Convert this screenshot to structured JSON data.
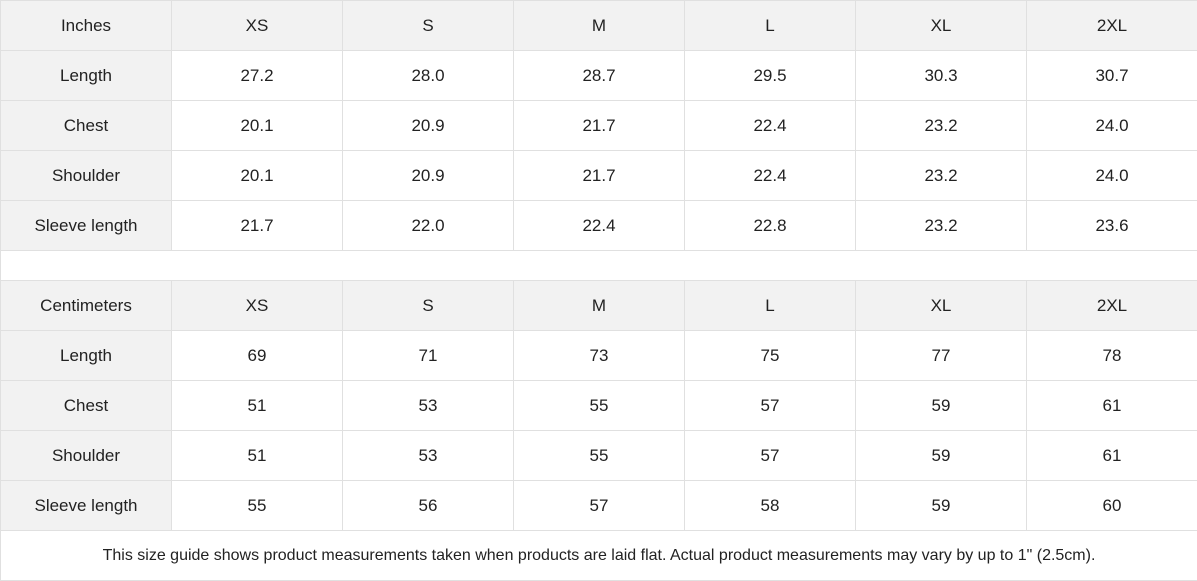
{
  "tables": [
    {
      "unit": "Inches",
      "sizes": [
        "XS",
        "S",
        "M",
        "L",
        "XL",
        "2XL"
      ],
      "rows": [
        {
          "label": "Length",
          "values": [
            "27.2",
            "28.0",
            "28.7",
            "29.5",
            "30.3",
            "30.7"
          ]
        },
        {
          "label": "Chest",
          "values": [
            "20.1",
            "20.9",
            "21.7",
            "22.4",
            "23.2",
            "24.0"
          ]
        },
        {
          "label": "Shoulder",
          "values": [
            "20.1",
            "20.9",
            "21.7",
            "22.4",
            "23.2",
            "24.0"
          ]
        },
        {
          "label": "Sleeve length",
          "values": [
            "21.7",
            "22.0",
            "22.4",
            "22.8",
            "23.2",
            "23.6"
          ]
        }
      ]
    },
    {
      "unit": "Centimeters",
      "sizes": [
        "XS",
        "S",
        "M",
        "L",
        "XL",
        "2XL"
      ],
      "rows": [
        {
          "label": "Length",
          "values": [
            "69",
            "71",
            "73",
            "75",
            "77",
            "78"
          ]
        },
        {
          "label": "Chest",
          "values": [
            "51",
            "53",
            "55",
            "57",
            "59",
            "61"
          ]
        },
        {
          "label": "Shoulder",
          "values": [
            "51",
            "53",
            "55",
            "57",
            "59",
            "61"
          ]
        },
        {
          "label": "Sleeve length",
          "values": [
            "55",
            "56",
            "57",
            "58",
            "59",
            "60"
          ]
        }
      ]
    }
  ],
  "footnote": "This size guide shows product measurements taken when products are laid flat.  Actual product measurements may vary by up to 1\" (2.5cm).",
  "colors": {
    "header_bg": "#f2f2f2",
    "border": "#e0e0e0",
    "text": "#222222"
  }
}
